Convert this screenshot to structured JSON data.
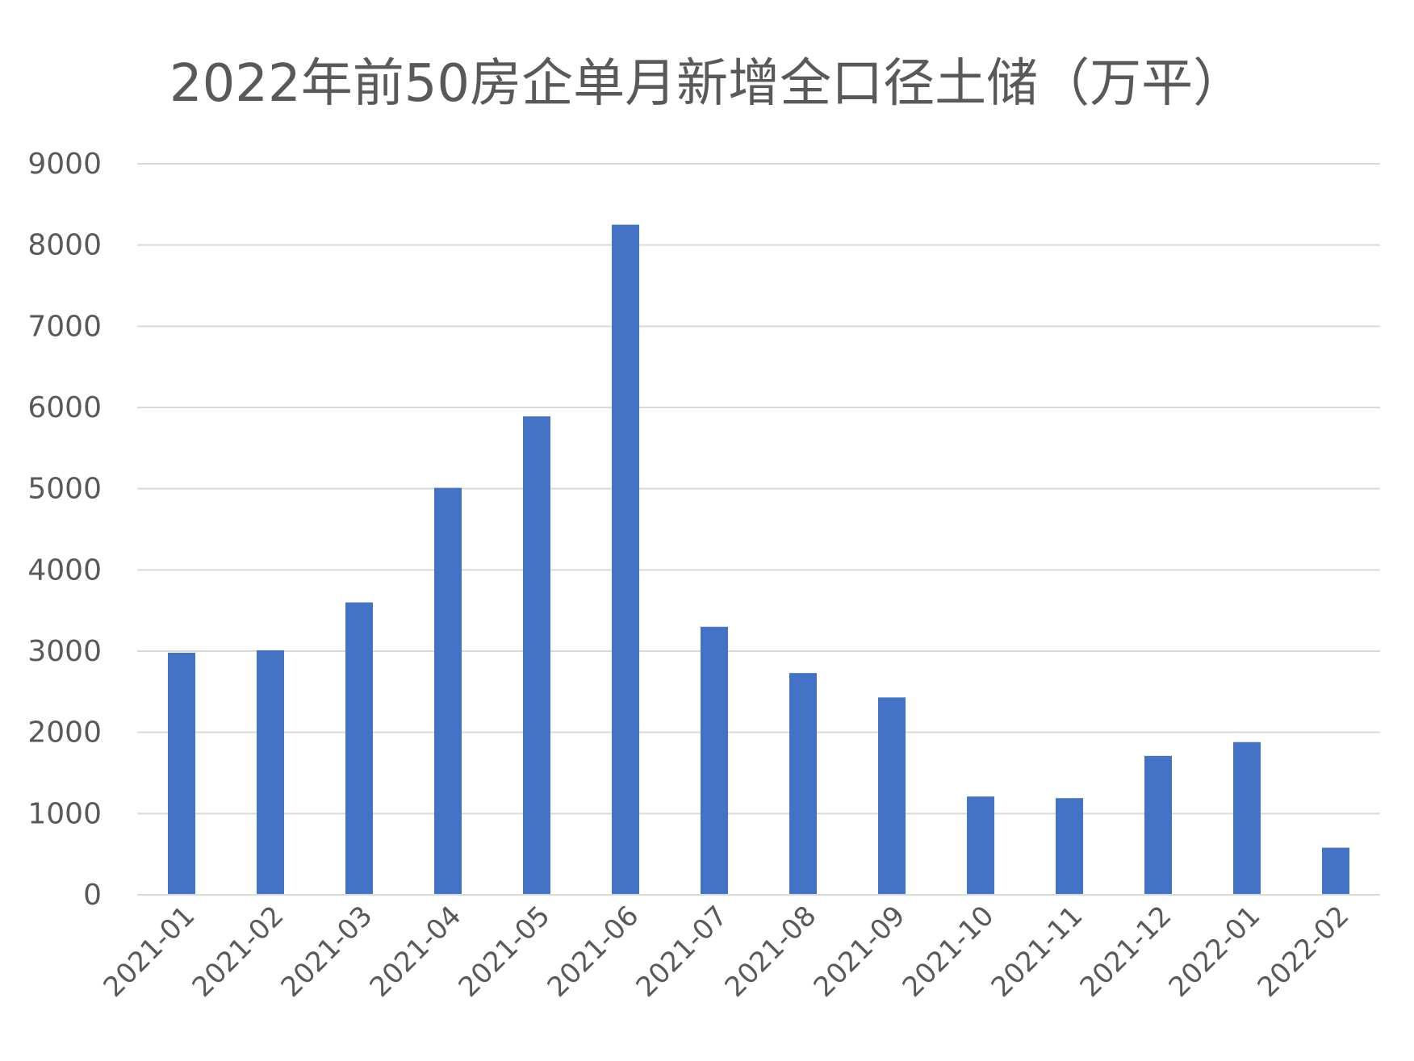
{
  "chart_data": {
    "type": "bar",
    "title": "2022年前50房企单月新增全口径土储（万平）",
    "xlabel": "",
    "ylabel": "",
    "categories": [
      "2021-01",
      "2021-02",
      "2021-03",
      "2021-04",
      "2021-05",
      "2021-06",
      "2021-07",
      "2021-08",
      "2021-09",
      "2021-10",
      "2021-11",
      "2021-12",
      "2022-01",
      "2022-02"
    ],
    "values": [
      2980,
      3010,
      3600,
      5010,
      5890,
      8250,
      3300,
      2730,
      2430,
      1210,
      1190,
      1710,
      1880,
      580
    ],
    "ylim": [
      0,
      9000
    ],
    "yticks": [
      0,
      1000,
      2000,
      3000,
      4000,
      5000,
      6000,
      7000,
      8000,
      9000
    ],
    "grid": true,
    "colors": {
      "bar": "#4472C4",
      "grid": "#D9D9D9",
      "text": "#595959"
    }
  }
}
